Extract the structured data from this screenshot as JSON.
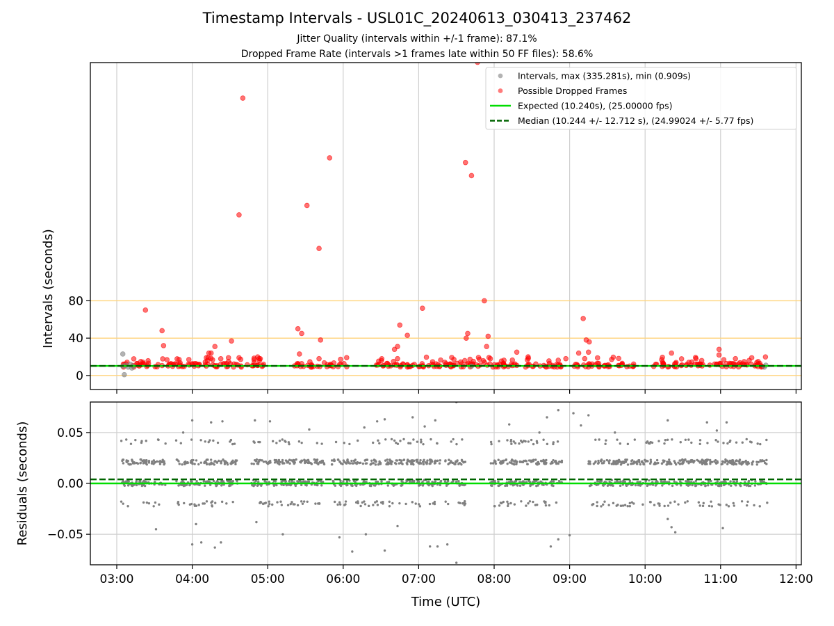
{
  "header": {
    "title": "Timestamp Intervals - USL01C_20240613_030413_237462",
    "subtitle1": "Jitter Quality (intervals within +/-1 frame): 87.1%",
    "subtitle2": "Dropped Frame Rate (intervals >1 frames late within 50 FF files): 58.6%"
  },
  "colors": {
    "normal": "#808080",
    "dropped": "#ff0000",
    "expected": "#00dd00",
    "median": "#006400",
    "threshold": "#ffd37a",
    "grid": "#cfcfcf"
  },
  "chart_data": [
    {
      "type": "scatter",
      "panel": "intervals",
      "xlabel": "",
      "ylabel": "Intervals (seconds)",
      "x_unit": "time (UTC, hours)",
      "xlim": [
        2.65,
        12.07
      ],
      "ylim": [
        -15,
        335
      ],
      "yticks": [
        0,
        40,
        80
      ],
      "xgrid": true,
      "threshold_lines": [
        0,
        40,
        80
      ],
      "legend": {
        "placement": "top-right",
        "entries": [
          {
            "label": "Intervals, max (335.281s), min (0.909s)",
            "kind": "dot",
            "color": "#a0a0a0"
          },
          {
            "label": "Possible Dropped Frames",
            "kind": "dot",
            "color": "#ff5a5a"
          },
          {
            "label": "Expected (10.240s), (25.00000 fps)",
            "kind": "solid",
            "color": "#00dd00"
          },
          {
            "label": "Median (10.244 +/- 12.712 s), (24.99024 +/- 5.77 fps)",
            "kind": "dashed",
            "color": "#006400"
          }
        ]
      },
      "expected_value": 10.24,
      "median_value": 10.244,
      "baseline_bands": [
        [
          3.08,
          3.55
        ],
        [
          3.55,
          3.98
        ],
        [
          3.92,
          4.12
        ],
        [
          4.15,
          4.35
        ],
        [
          4.35,
          4.65
        ],
        [
          4.7,
          4.95
        ],
        [
          5.35,
          5.75
        ],
        [
          5.75,
          6.05
        ],
        [
          6.35,
          6.95
        ],
        [
          6.95,
          7.3
        ],
        [
          7.3,
          7.65
        ],
        [
          7.6,
          7.8
        ],
        [
          7.8,
          8.3
        ],
        [
          8.3,
          8.9
        ],
        [
          8.95,
          9.5
        ],
        [
          9.5,
          9.85
        ],
        [
          10.1,
          10.55
        ],
        [
          10.55,
          10.75
        ],
        [
          10.75,
          11.25
        ],
        [
          11.25,
          11.6
        ]
      ],
      "normal_points": [
        [
          3.08,
          23
        ],
        [
          3.08,
          10
        ],
        [
          3.1,
          0.9
        ],
        [
          3.12,
          11
        ],
        [
          3.15,
          9
        ],
        [
          3.18,
          12
        ],
        [
          3.2,
          8
        ],
        [
          3.22,
          10
        ],
        [
          7.7,
          10
        ],
        [
          11.58,
          9
        ],
        [
          11.6,
          11
        ]
      ],
      "dropped_points": [
        [
          4.67,
          297
        ],
        [
          7.78,
          335.3
        ],
        [
          5.82,
          233
        ],
        [
          7.62,
          228
        ],
        [
          7.7,
          214
        ],
        [
          5.52,
          182
        ],
        [
          4.62,
          172
        ],
        [
          5.68,
          136
        ],
        [
          7.87,
          80
        ],
        [
          7.05,
          72
        ],
        [
          3.38,
          70
        ],
        [
          9.18,
          61
        ],
        [
          6.75,
          54
        ],
        [
          3.6,
          48
        ],
        [
          5.4,
          50
        ],
        [
          5.45,
          45
        ],
        [
          6.85,
          43
        ],
        [
          7.92,
          42
        ],
        [
          7.65,
          45
        ],
        [
          7.63,
          40
        ],
        [
          4.52,
          37
        ],
        [
          5.7,
          38
        ],
        [
          9.22,
          38
        ],
        [
          9.26,
          36
        ],
        [
          3.62,
          32
        ],
        [
          6.72,
          31
        ],
        [
          4.3,
          31
        ],
        [
          6.68,
          28
        ],
        [
          7.9,
          31
        ],
        [
          10.98,
          28
        ],
        [
          10.35,
          24
        ],
        [
          5.42,
          23
        ],
        [
          4.22,
          24
        ],
        [
          4.25,
          24
        ],
        [
          9.12,
          24
        ],
        [
          9.25,
          25
        ],
        [
          8.3,
          25
        ],
        [
          10.98,
          22
        ],
        [
          8.45,
          20
        ],
        [
          4.48,
          19
        ],
        [
          4.62,
          19
        ],
        [
          5.68,
          18
        ],
        [
          6.72,
          18
        ],
        [
          9.2,
          18
        ],
        [
          7.95,
          18
        ],
        [
          8.95,
          18
        ],
        [
          10.22,
          17
        ],
        [
          10.75,
          16
        ],
        [
          3.42,
          13
        ],
        [
          11.12,
          13
        ],
        [
          4.2,
          16
        ]
      ]
    },
    {
      "type": "scatter",
      "panel": "residuals",
      "xlabel": "Time (UTC)",
      "ylabel": "Residuals (seconds)",
      "xlim": [
        2.65,
        12.07
      ],
      "ylim": [
        -0.08,
        0.08
      ],
      "yticks": [
        0.05,
        0.0,
        -0.05
      ],
      "ytick_labels": [
        "0.05",
        "0.00",
        "−0.05"
      ],
      "xticks": [
        3,
        4,
        5,
        6,
        7,
        8,
        9,
        10,
        11,
        12
      ],
      "xtick_labels": [
        "03:00",
        "04:00",
        "05:00",
        "06:00",
        "07:00",
        "08:00",
        "09:00",
        "10:00",
        "11:00",
        "12:00"
      ],
      "grid": true,
      "expected_value": 0.0,
      "median_value": 0.004,
      "segments": [
        [
          3.05,
          3.65
        ],
        [
          3.78,
          4.6
        ],
        [
          4.78,
          5.75
        ],
        [
          5.85,
          7.3
        ],
        [
          7.35,
          7.62
        ],
        [
          7.95,
          8.9
        ],
        [
          9.25,
          11.62
        ]
      ],
      "levels": [
        0.021,
        0.0,
        -0.02,
        0.041,
        0.001
      ],
      "level_weights": [
        0.38,
        0.34,
        0.12,
        0.08,
        0.08
      ],
      "approx_points": 1700,
      "outliers": [
        [
          4.0,
          -0.06
        ],
        [
          4.12,
          -0.058
        ],
        [
          4.3,
          -0.063
        ],
        [
          4.38,
          -0.058
        ],
        [
          5.2,
          -0.05
        ],
        [
          5.95,
          -0.053
        ],
        [
          6.12,
          -0.067
        ],
        [
          6.55,
          -0.066
        ],
        [
          7.15,
          -0.062
        ],
        [
          7.25,
          -0.062
        ],
        [
          7.5,
          -0.078
        ],
        [
          7.38,
          -0.06
        ],
        [
          8.75,
          -0.062
        ],
        [
          9.0,
          -0.051
        ],
        [
          8.85,
          -0.055
        ],
        [
          10.4,
          -0.048
        ],
        [
          10.35,
          -0.043
        ],
        [
          11.03,
          -0.044
        ],
        [
          3.52,
          -0.045
        ],
        [
          4.05,
          -0.04
        ],
        [
          4.85,
          -0.038
        ],
        [
          6.3,
          -0.05
        ],
        [
          6.72,
          -0.042
        ],
        [
          10.3,
          -0.035
        ],
        [
          4.0,
          0.062
        ],
        [
          4.25,
          0.06
        ],
        [
          4.4,
          0.061
        ],
        [
          4.83,
          0.062
        ],
        [
          5.03,
          0.061
        ],
        [
          6.45,
          0.061
        ],
        [
          6.55,
          0.063
        ],
        [
          6.92,
          0.065
        ],
        [
          7.22,
          0.062
        ],
        [
          7.5,
          0.08
        ],
        [
          8.7,
          0.065
        ],
        [
          8.85,
          0.072
        ],
        [
          9.05,
          0.069
        ],
        [
          9.25,
          0.067
        ],
        [
          10.3,
          0.062
        ],
        [
          10.82,
          0.06
        ],
        [
          11.08,
          0.06
        ],
        [
          6.28,
          0.055
        ],
        [
          8.2,
          0.058
        ],
        [
          9.15,
          0.057
        ],
        [
          3.88,
          0.05
        ],
        [
          7.08,
          0.056
        ],
        [
          9.6,
          0.05
        ],
        [
          5.55,
          0.053
        ],
        [
          8.6,
          0.05
        ],
        [
          10.95,
          0.052
        ]
      ]
    }
  ]
}
